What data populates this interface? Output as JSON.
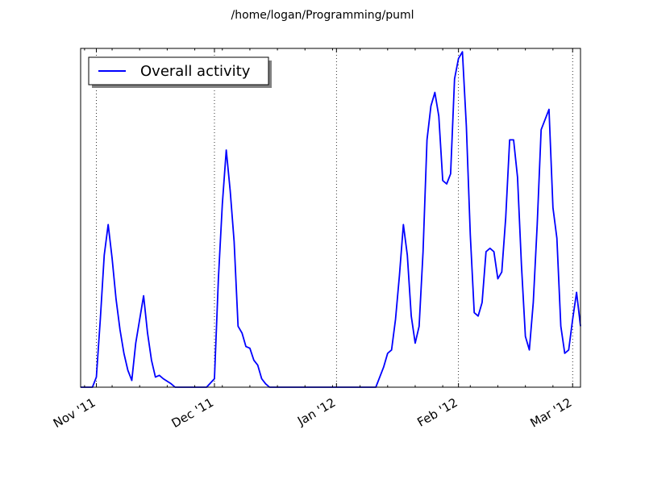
{
  "title": "/home/logan/Programming/puml",
  "chart_data": {
    "type": "line",
    "title": "/home/logan/Programming/puml",
    "xlabel": "",
    "ylabel": "",
    "x_axis_type": "date",
    "xlim": [
      "2011-10-28",
      "2012-03-03"
    ],
    "ylim": [
      0,
      1
    ],
    "y_tick_labels_shown": false,
    "x_ticks": [
      {
        "date": "2011-11-01",
        "label": "Nov '11"
      },
      {
        "date": "2011-12-01",
        "label": "Dec '11"
      },
      {
        "date": "2012-01-01",
        "label": "Jan '12"
      },
      {
        "date": "2012-02-01",
        "label": "Feb '12"
      },
      {
        "date": "2012-03-01",
        "label": "Mar '12"
      }
    ],
    "grid": "x-major-dotted",
    "legend": {
      "position": "top-left",
      "entries": [
        "Overall activity"
      ]
    },
    "series": [
      {
        "name": "Overall activity",
        "color": "#0000ff",
        "points": [
          [
            "2011-10-28",
            0.0
          ],
          [
            "2011-10-31",
            0.0
          ],
          [
            "2011-11-01",
            0.03
          ],
          [
            "2011-11-02",
            0.2
          ],
          [
            "2011-11-03",
            0.39
          ],
          [
            "2011-11-04",
            0.48
          ],
          [
            "2011-11-05",
            0.38
          ],
          [
            "2011-11-06",
            0.26
          ],
          [
            "2011-11-07",
            0.17
          ],
          [
            "2011-11-08",
            0.1
          ],
          [
            "2011-11-09",
            0.05
          ],
          [
            "2011-11-10",
            0.02
          ],
          [
            "2011-11-11",
            0.13
          ],
          [
            "2011-11-12",
            0.2
          ],
          [
            "2011-11-13",
            0.27
          ],
          [
            "2011-11-14",
            0.16
          ],
          [
            "2011-11-15",
            0.08
          ],
          [
            "2011-11-16",
            0.03
          ],
          [
            "2011-11-17",
            0.035
          ],
          [
            "2011-11-18",
            0.025
          ],
          [
            "2011-11-20",
            0.01
          ],
          [
            "2011-11-21",
            0.0
          ],
          [
            "2011-11-29",
            0.0
          ],
          [
            "2011-12-01",
            0.025
          ],
          [
            "2011-12-02",
            0.32
          ],
          [
            "2011-12-03",
            0.54
          ],
          [
            "2011-12-04",
            0.7
          ],
          [
            "2011-12-05",
            0.58
          ],
          [
            "2011-12-06",
            0.43
          ],
          [
            "2011-12-07",
            0.18
          ],
          [
            "2011-12-08",
            0.16
          ],
          [
            "2011-12-09",
            0.12
          ],
          [
            "2011-12-10",
            0.115
          ],
          [
            "2011-12-11",
            0.08
          ],
          [
            "2011-12-12",
            0.065
          ],
          [
            "2011-12-13",
            0.025
          ],
          [
            "2011-12-14",
            0.01
          ],
          [
            "2011-12-15",
            0.0
          ],
          [
            "2012-01-11",
            0.0
          ],
          [
            "2012-01-12",
            0.03
          ],
          [
            "2012-01-13",
            0.06
          ],
          [
            "2012-01-14",
            0.1
          ],
          [
            "2012-01-15",
            0.11
          ],
          [
            "2012-01-16",
            0.2
          ],
          [
            "2012-01-17",
            0.33
          ],
          [
            "2012-01-18",
            0.48
          ],
          [
            "2012-01-19",
            0.39
          ],
          [
            "2012-01-20",
            0.21
          ],
          [
            "2012-01-21",
            0.13
          ],
          [
            "2012-01-22",
            0.18
          ],
          [
            "2012-01-23",
            0.4
          ],
          [
            "2012-01-24",
            0.73
          ],
          [
            "2012-01-25",
            0.83
          ],
          [
            "2012-01-26",
            0.87
          ],
          [
            "2012-01-27",
            0.8
          ],
          [
            "2012-01-28",
            0.61
          ],
          [
            "2012-01-29",
            0.6
          ],
          [
            "2012-01-30",
            0.63
          ],
          [
            "2012-01-31",
            0.91
          ],
          [
            "2012-02-01",
            0.97
          ],
          [
            "2012-02-02",
            0.99
          ],
          [
            "2012-02-03",
            0.77
          ],
          [
            "2012-02-04",
            0.45
          ],
          [
            "2012-02-05",
            0.22
          ],
          [
            "2012-02-06",
            0.21
          ],
          [
            "2012-02-07",
            0.25
          ],
          [
            "2012-02-08",
            0.4
          ],
          [
            "2012-02-09",
            0.41
          ],
          [
            "2012-02-10",
            0.4
          ],
          [
            "2012-02-11",
            0.32
          ],
          [
            "2012-02-12",
            0.34
          ],
          [
            "2012-02-13",
            0.5
          ],
          [
            "2012-02-14",
            0.73
          ],
          [
            "2012-02-15",
            0.73
          ],
          [
            "2012-02-16",
            0.62
          ],
          [
            "2012-02-17",
            0.36
          ],
          [
            "2012-02-18",
            0.15
          ],
          [
            "2012-02-19",
            0.11
          ],
          [
            "2012-02-20",
            0.25
          ],
          [
            "2012-02-21",
            0.48
          ],
          [
            "2012-02-22",
            0.76
          ],
          [
            "2012-02-23",
            0.79
          ],
          [
            "2012-02-24",
            0.82
          ],
          [
            "2012-02-25",
            0.53
          ],
          [
            "2012-02-26",
            0.44
          ],
          [
            "2012-02-27",
            0.18
          ],
          [
            "2012-02-28",
            0.1
          ],
          [
            "2012-02-29",
            0.11
          ],
          [
            "2012-03-01",
            0.2
          ],
          [
            "2012-03-02",
            0.28
          ],
          [
            "2012-03-03",
            0.18
          ]
        ]
      }
    ]
  }
}
